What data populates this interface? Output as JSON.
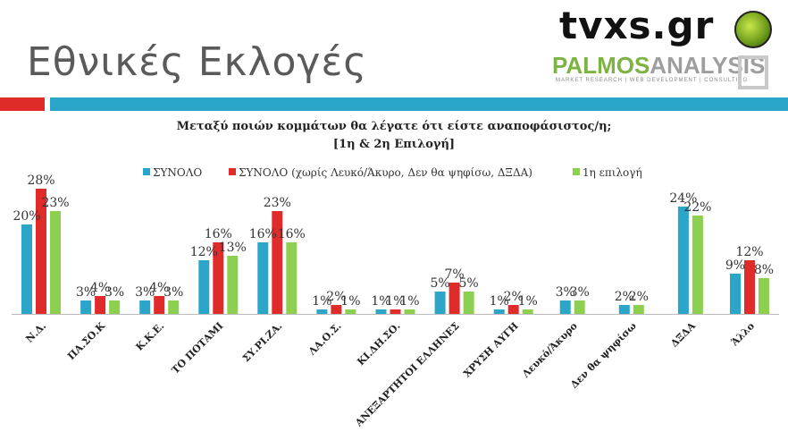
{
  "header": {
    "title": "Εθνικές Εκλογές",
    "logo_tvxs": "tvxs.gr",
    "logo_palmos_a": "PALMOS",
    "logo_palmos_b": "ANALYSIS",
    "logo_tagline": "MARKET RESEARCH | WEB DEVELOPMENT | CONSULTING"
  },
  "colors": {
    "series1": "#2ba5c8",
    "series2": "#e02b2b",
    "series3": "#8dcf4f",
    "accent_red": "#e02b2b",
    "accent_blue": "#2ba5c8"
  },
  "chart_data": {
    "type": "bar",
    "title_line1": "Μεταξύ ποιών κομμάτων θα λέγατε ότι είστε αναποφάσιστος/η;",
    "title_line2": "[1η & 2η Επιλογή]",
    "legend_position": "top",
    "categories": [
      "Ν.Δ.",
      "ΠΑ.ΣΟ.Κ",
      "Κ.Κ.Ε.",
      "ΤΟ ΠΟΤΑΜΙ",
      "ΣΥ.ΡΙ.ΖΑ.",
      "ΛΑ.Ο.Σ.",
      "ΚΙ.ΔΗ.ΣΟ.",
      "ΑΝΕΞΑΡΤΗΤΟΙ ΕΛΛΗΝΕΣ",
      "ΧΡΥΣΗ ΑΥΓΗ",
      "Λευκό/Άκυρο",
      "Δεν θα ψηφίσω",
      "ΔΞΔΑ",
      "Άλλο"
    ],
    "ylim": [
      0,
      30
    ],
    "series": [
      {
        "name": "ΣΥΝΟΛΟ",
        "values": [
          20,
          3,
          3,
          12,
          16,
          1,
          1,
          5,
          1,
          3,
          2,
          24,
          9
        ],
        "labels": [
          "20%",
          "3%",
          "3%",
          "12%",
          "16%",
          "1%",
          "1%",
          "5%",
          "1%",
          "3%",
          "2%",
          "24%",
          "9%"
        ]
      },
      {
        "name": "ΣΥΝΟΛΟ (χωρίς Λευκό/Άκυρο, Δεν θα ψηφίσω, ΔΞΔΑ)",
        "values": [
          28,
          4,
          4,
          16,
          23,
          2,
          1,
          7,
          2,
          null,
          null,
          null,
          12
        ],
        "labels": [
          "28%",
          "4%",
          "4%",
          "16%",
          "23%",
          "2%",
          "1%",
          "7%",
          "2%",
          null,
          null,
          null,
          "12%"
        ]
      },
      {
        "name": "1η επιλογή",
        "values": [
          23,
          3,
          3,
          13,
          16,
          1,
          1,
          5,
          1,
          3,
          2,
          22,
          8
        ],
        "labels": [
          "23%",
          "3%",
          "3%",
          "13%",
          "16%",
          "1%",
          "1%",
          "5%",
          "1%",
          "3%",
          "2%",
          "22%",
          "8%"
        ]
      }
    ]
  }
}
